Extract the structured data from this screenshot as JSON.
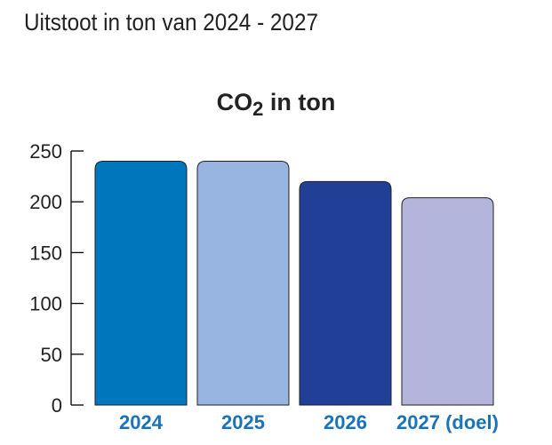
{
  "header": {
    "title": "Uitstoot in ton van 2024 - 2027"
  },
  "chart_data": {
    "type": "bar",
    "title": {
      "main": "CO",
      "subscript": "2",
      "suffix": " in ton"
    },
    "categories": [
      "2024",
      "2025",
      "2026",
      "2027 (doel)"
    ],
    "values": [
      240,
      240,
      220,
      204
    ],
    "colors": [
      "#0077bd",
      "#97b5e0",
      "#223f98",
      "#b3b5dc"
    ],
    "category_label_color": "#1a73b8",
    "ylim": [
      0,
      250
    ],
    "yticks": [
      0,
      50,
      100,
      150,
      200,
      250
    ],
    "grid": false,
    "xlabel": "",
    "ylabel": ""
  }
}
